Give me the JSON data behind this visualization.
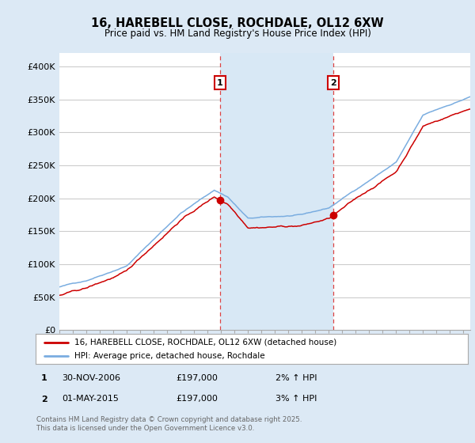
{
  "title_line1": "16, HAREBELL CLOSE, ROCHDALE, OL12 6XW",
  "title_line2": "Price paid vs. HM Land Registry's House Price Index (HPI)",
  "ylim": [
    0,
    420000
  ],
  "yticks": [
    0,
    50000,
    100000,
    150000,
    200000,
    250000,
    300000,
    350000,
    400000
  ],
  "ytick_labels": [
    "£0",
    "£50K",
    "£100K",
    "£150K",
    "£200K",
    "£250K",
    "£300K",
    "£350K",
    "£400K"
  ],
  "fig_bg_color": "#dce9f5",
  "plot_bg_color": "#ffffff",
  "shade_color": "#d8e8f5",
  "grid_color": "#cccccc",
  "red_line_color": "#cc0000",
  "blue_line_color": "#7aade0",
  "vline_color": "#dd4444",
  "marker1_x": 2006.917,
  "marker2_x": 2015.333,
  "legend_label_red": "16, HAREBELL CLOSE, ROCHDALE, OL12 6XW (detached house)",
  "legend_label_blue": "HPI: Average price, detached house, Rochdale",
  "note1_num": "1",
  "note1_date": "30-NOV-2006",
  "note1_price": "£197,000",
  "note1_hpi": "2% ↑ HPI",
  "note2_num": "2",
  "note2_date": "01-MAY-2015",
  "note2_price": "£197,000",
  "note2_hpi": "3% ↑ HPI",
  "copyright": "Contains HM Land Registry data © Crown copyright and database right 2025.\nThis data is licensed under the Open Government Licence v3.0.",
  "xmin": 1995,
  "xmax": 2025.5
}
